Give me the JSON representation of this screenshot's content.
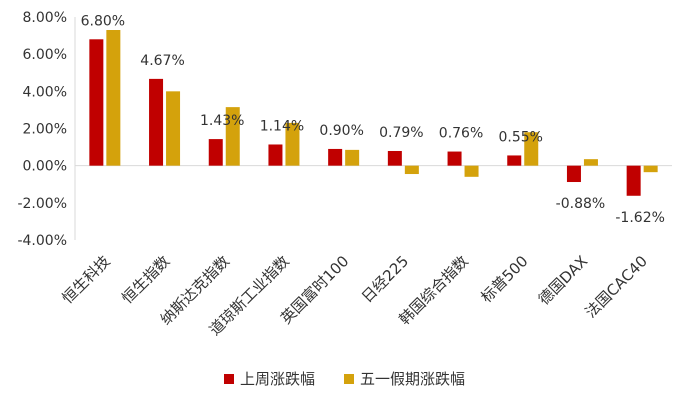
{
  "chart_data": {
    "type": "bar",
    "categories": [
      "恒生科技",
      "恒生指数",
      "纳斯达克指数",
      "道琼斯工业指数",
      "英国富时100",
      "日经225",
      "韩国综合指数",
      "标普500",
      "德国DAX",
      "法国CAC40"
    ],
    "series": [
      {
        "name": "上周涨跌幅",
        "color": "#C00000",
        "values": [
          6.8,
          4.67,
          1.43,
          1.14,
          0.9,
          0.79,
          0.76,
          0.55,
          -0.88,
          -1.62
        ],
        "labels": [
          "6.80%",
          "4.67%",
          "1.43%",
          "1.14%",
          "0.90%",
          "0.79%",
          "0.76%",
          "0.55%",
          "-0.88%",
          "-1.62%"
        ]
      },
      {
        "name": "五一假期涨跌幅",
        "color": "#D4A20C",
        "values": [
          7.3,
          4.0,
          3.15,
          2.3,
          0.85,
          -0.45,
          -0.6,
          1.8,
          0.35,
          -0.35
        ]
      }
    ],
    "ylim": [
      -4,
      8
    ],
    "yticks": [
      -4,
      -2,
      0,
      2,
      4,
      6,
      8
    ],
    "ytick_labels": [
      "-4.00%",
      "-2.00%",
      "0.00%",
      "2.00%",
      "4.00%",
      "6.00%",
      "8.00%"
    ],
    "grid": false,
    "legend": "bottom-center"
  }
}
